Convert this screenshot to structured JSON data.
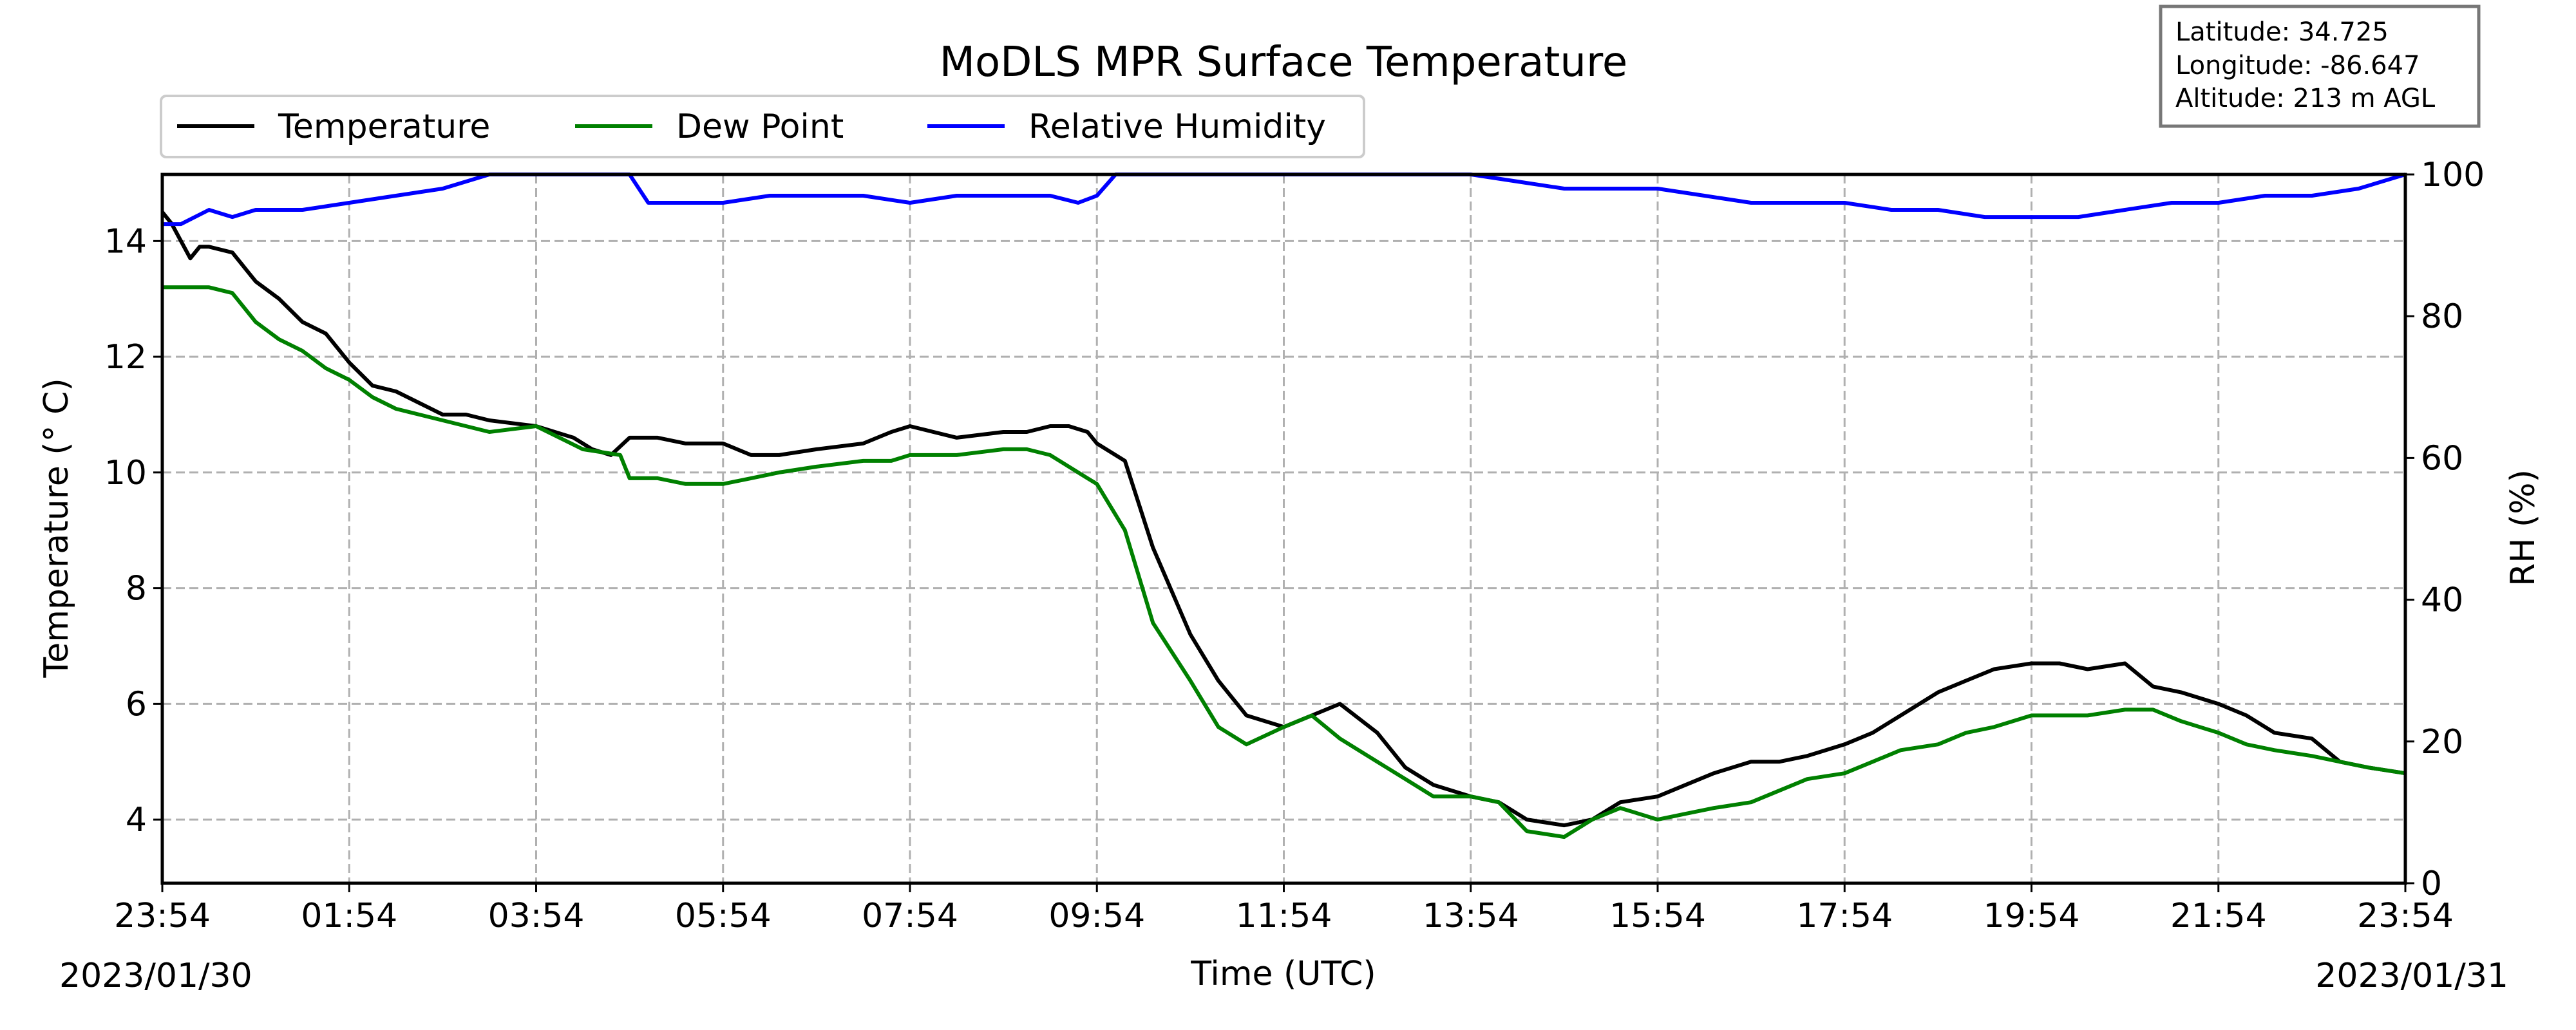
{
  "chart_data": {
    "type": "line",
    "title": "MoDLS MPR Surface Temperature",
    "xlabel": "Time (UTC)",
    "ylabel_left": "Temperature ($^\\circ$C)",
    "ylabel_left_display": "Temperature (° C)",
    "ylabel_right": "RH (%)",
    "x_tick_labels": [
      "23:54",
      "01:54",
      "03:54",
      "05:54",
      "07:54",
      "09:54",
      "11:54",
      "13:54",
      "15:54",
      "17:54",
      "19:54",
      "21:54",
      "23:54"
    ],
    "x_hours": [
      0,
      2,
      4,
      6,
      8,
      10,
      12,
      14,
      16,
      18,
      20,
      22,
      24
    ],
    "xlim_hours": [
      0,
      24
    ],
    "start_date": "2023/01/30",
    "end_date": "2023/01/31",
    "ylim_left": [
      2.9,
      15.15
    ],
    "yticks_left": [
      4,
      6,
      8,
      10,
      12,
      14
    ],
    "ylim_right": [
      0,
      100
    ],
    "yticks_right": [
      0,
      20,
      40,
      60,
      80,
      100
    ],
    "grid": true,
    "legend_placement": "upper-left, above plot",
    "info_box": {
      "latitude": "Latitude: 34.725",
      "longitude": "Longitude: -86.647",
      "altitude": "Altitude: 213 m AGL"
    },
    "colors": {
      "temperature": "#000000",
      "dew_point": "#008000",
      "rh": "#0000ff",
      "grid": "#b0b0b0"
    },
    "series": [
      {
        "name": "Temperature",
        "axis": "left",
        "x": [
          0,
          0.1,
          0.2,
          0.3,
          0.4,
          0.5,
          0.75,
          1.0,
          1.25,
          1.5,
          1.75,
          2.0,
          2.25,
          2.5,
          2.75,
          3.0,
          3.25,
          3.5,
          4.0,
          4.4,
          4.6,
          4.8,
          5.0,
          5.3,
          5.6,
          6.0,
          6.3,
          6.6,
          7.0,
          7.5,
          7.8,
          8.0,
          8.5,
          9.0,
          9.25,
          9.5,
          9.7,
          9.9,
          10.0,
          10.3,
          10.6,
          11.0,
          11.3,
          11.6,
          12.0,
          12.3,
          12.6,
          13.0,
          13.3,
          13.6,
          14.0,
          14.3,
          14.6,
          15.0,
          15.3,
          15.6,
          16.0,
          16.3,
          16.6,
          17.0,
          17.3,
          17.6,
          18.0,
          18.3,
          18.6,
          19.0,
          19.3,
          19.6,
          20.0,
          20.3,
          20.6,
          21.0,
          21.3,
          21.6,
          22.0,
          22.3,
          22.6,
          23.0,
          23.3,
          23.6,
          24.0
        ],
        "y": [
          14.5,
          14.3,
          14.0,
          13.7,
          13.9,
          13.9,
          13.8,
          13.3,
          13.0,
          12.6,
          12.4,
          11.9,
          11.5,
          11.4,
          11.2,
          11.0,
          11.0,
          10.9,
          10.8,
          10.6,
          10.4,
          10.3,
          10.6,
          10.6,
          10.5,
          10.5,
          10.3,
          10.3,
          10.4,
          10.5,
          10.7,
          10.8,
          10.6,
          10.7,
          10.7,
          10.8,
          10.8,
          10.7,
          10.5,
          10.2,
          8.7,
          7.2,
          6.4,
          5.8,
          5.6,
          5.8,
          6.0,
          5.5,
          4.9,
          4.6,
          4.4,
          4.3,
          4.0,
          3.9,
          4.0,
          4.3,
          4.4,
          4.6,
          4.8,
          5.0,
          5.0,
          5.1,
          5.3,
          5.5,
          5.8,
          6.2,
          6.4,
          6.6,
          6.7,
          6.7,
          6.6,
          6.7,
          6.3,
          6.2,
          6.0,
          5.8,
          5.5,
          5.4,
          5.0,
          4.9,
          4.8
        ]
      },
      {
        "name": "Dew Point",
        "axis": "left",
        "x": [
          0,
          0.25,
          0.5,
          0.75,
          1.0,
          1.25,
          1.5,
          1.75,
          2.0,
          2.25,
          2.5,
          2.75,
          3.0,
          3.25,
          3.5,
          4.0,
          4.5,
          4.9,
          5.0,
          5.3,
          5.6,
          6.0,
          6.3,
          6.6,
          7.0,
          7.5,
          7.8,
          8.0,
          8.5,
          9.0,
          9.25,
          9.5,
          9.7,
          9.9,
          10.0,
          10.3,
          10.6,
          11.0,
          11.3,
          11.6,
          12.0,
          12.3,
          12.6,
          13.0,
          13.3,
          13.6,
          14.0,
          14.3,
          14.6,
          15.0,
          15.3,
          15.6,
          16.0,
          16.3,
          16.6,
          17.0,
          17.3,
          17.6,
          18.0,
          18.3,
          18.6,
          19.0,
          19.3,
          19.6,
          20.0,
          20.3,
          20.6,
          21.0,
          21.3,
          21.6,
          22.0,
          22.3,
          22.6,
          23.0,
          23.3,
          23.6,
          24.0
        ],
        "y": [
          13.2,
          13.2,
          13.2,
          13.1,
          12.6,
          12.3,
          12.1,
          11.8,
          11.6,
          11.3,
          11.1,
          11.0,
          10.9,
          10.8,
          10.7,
          10.8,
          10.4,
          10.3,
          9.9,
          9.9,
          9.8,
          9.8,
          9.9,
          10.0,
          10.1,
          10.2,
          10.2,
          10.3,
          10.3,
          10.4,
          10.4,
          10.3,
          10.1,
          9.9,
          9.8,
          9.0,
          7.4,
          6.4,
          5.6,
          5.3,
          5.6,
          5.8,
          5.4,
          5.0,
          4.7,
          4.4,
          4.4,
          4.3,
          3.8,
          3.7,
          4.0,
          4.2,
          4.0,
          4.1,
          4.2,
          4.3,
          4.5,
          4.7,
          4.8,
          5.0,
          5.2,
          5.3,
          5.5,
          5.6,
          5.8,
          5.8,
          5.8,
          5.9,
          5.9,
          5.7,
          5.5,
          5.3,
          5.2,
          5.1,
          5.0,
          4.9,
          4.8
        ]
      },
      {
        "name": "Relative Humidity",
        "axis": "right",
        "x": [
          0,
          0.2,
          0.5,
          0.75,
          1.0,
          1.5,
          2.0,
          2.5,
          3.0,
          3.25,
          3.5,
          3.75,
          4.0,
          4.5,
          5.0,
          5.2,
          5.5,
          6.0,
          6.5,
          7.0,
          7.5,
          8.0,
          8.5,
          9.0,
          9.5,
          9.8,
          10.0,
          10.2,
          10.5,
          11.0,
          11.5,
          12.0,
          12.5,
          13.0,
          13.5,
          14.0,
          14.5,
          15.0,
          15.5,
          16.0,
          16.5,
          17.0,
          17.5,
          18.0,
          18.5,
          19.0,
          19.5,
          20.0,
          20.5,
          21.0,
          21.5,
          22.0,
          22.5,
          23.0,
          23.5,
          24.0
        ],
        "y": [
          93,
          93,
          95,
          94,
          95,
          95,
          96,
          97,
          98,
          99,
          100,
          100,
          100,
          100,
          100,
          96,
          96,
          96,
          97,
          97,
          97,
          96,
          97,
          97,
          97,
          96,
          97,
          100,
          100,
          100,
          100,
          100,
          100,
          100,
          100,
          100,
          99,
          98,
          98,
          98,
          97,
          96,
          96,
          96,
          95,
          95,
          94,
          94,
          94,
          95,
          96,
          96,
          97,
          97,
          98,
          100
        ]
      }
    ]
  }
}
